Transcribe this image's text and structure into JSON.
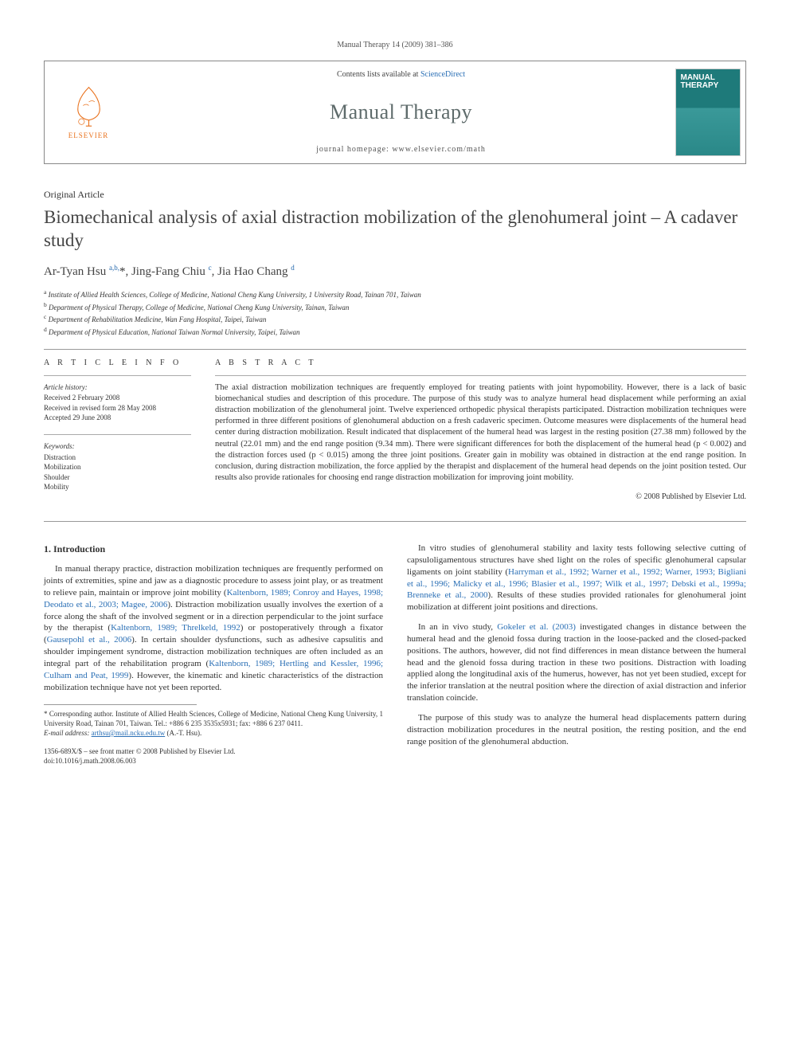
{
  "citation": "Manual Therapy 14 (2009) 381–386",
  "header": {
    "contents_prefix": "Contents lists available at ",
    "contents_link": "ScienceDirect",
    "journal": "Manual Therapy",
    "homepage_label": "journal homepage: ",
    "homepage_url": "www.elsevier.com/math",
    "publisher_label": "ELSEVIER",
    "cover_text": "MANUAL THERAPY"
  },
  "article_type": "Original Article",
  "title": "Biomechanical analysis of axial distraction mobilization of the glenohumeral joint – A cadaver study",
  "authors_html": "Ar-Tyan Hsu <sup>a,b,</sup><span class='star'>*</span>, Jing-Fang Chiu <sup>c</sup>, Jia Hao Chang <sup>d</sup>",
  "affiliations": [
    {
      "sup": "a",
      "text": "Institute of Allied Health Sciences, College of Medicine, National Cheng Kung University, 1 University Road, Tainan 701, Taiwan"
    },
    {
      "sup": "b",
      "text": "Department of Physical Therapy, College of Medicine, National Cheng Kung University, Tainan, Taiwan"
    },
    {
      "sup": "c",
      "text": "Department of Rehabilitation Medicine, Wan Fang Hospital, Taipei, Taiwan"
    },
    {
      "sup": "d",
      "text": "Department of Physical Education, National Taiwan Normal University, Taipei, Taiwan"
    }
  ],
  "info": {
    "heading": "A R T I C L E   I N F O",
    "history_label": "Article history:",
    "history": [
      "Received 2 February 2008",
      "Received in revised form 28 May 2008",
      "Accepted 29 June 2008"
    ],
    "keywords_label": "Keywords:",
    "keywords": [
      "Distraction",
      "Mobilization",
      "Shoulder",
      "Mobility"
    ]
  },
  "abstract": {
    "heading": "A B S T R A C T",
    "body": "The axial distraction mobilization techniques are frequently employed for treating patients with joint hypomobility. However, there is a lack of basic biomechanical studies and description of this procedure. The purpose of this study was to analyze humeral head displacement while performing an axial distraction mobilization of the glenohumeral joint. Twelve experienced orthopedic physical therapists participated. Distraction mobilization techniques were performed in three different positions of glenohumeral abduction on a fresh cadaveric specimen. Outcome measures were displacements of the humeral head center during distraction mobilization. Result indicated that displacement of the humeral head was largest in the resting position (27.38 mm) followed by the neutral (22.01 mm) and the end range position (9.34 mm). There were significant differences for both the displacement of the humeral head (p < 0.002) and the distraction forces used (p < 0.015) among the three joint positions. Greater gain in mobility was obtained in distraction at the end range position. In conclusion, during distraction mobilization, the force applied by the therapist and displacement of the humeral head depends on the joint position tested. Our results also provide rationales for choosing end range distraction mobilization for improving joint mobility.",
    "copyright": "© 2008 Published by Elsevier Ltd."
  },
  "section_heading": "1. Introduction",
  "left_col": [
    {
      "type": "p",
      "runs": [
        {
          "t": "In manual therapy practice, distraction mobilization techniques are frequently performed on joints of extremities, spine and jaw as a diagnostic procedure to assess joint play, or as treatment to relieve pain, maintain or improve joint mobility ("
        },
        {
          "t": "Kaltenborn, 1989; Conroy and Hayes, 1998; Deodato et al., 2003; Magee, 2006",
          "cite": true
        },
        {
          "t": "). Distraction mobilization usually involves the exertion of a force along the shaft of the involved segment or in a direction perpendicular to the joint surface by the therapist ("
        },
        {
          "t": "Kaltenborn, 1989; Threlkeld, 1992",
          "cite": true
        },
        {
          "t": ") or postoperatively through a fixator ("
        },
        {
          "t": "Gausepohl et al., 2006",
          "cite": true
        },
        {
          "t": "). In certain shoulder dysfunctions, such as adhesive capsulitis and shoulder impingement syndrome, distraction mobilization techniques are often included as an integral part of the rehabilitation program ("
        },
        {
          "t": "Kaltenborn, 1989; Hertling and Kessler, 1996; Culham and Peat, 1999",
          "cite": true
        },
        {
          "t": "). However, the kinematic and kinetic characteristics of the distraction mobilization technique have not yet been reported."
        }
      ]
    }
  ],
  "right_col": [
    {
      "type": "p",
      "runs": [
        {
          "t": "In vitro studies of glenohumeral stability and laxity tests following selective cutting of capsuloligamentous structures have shed light on the roles of specific glenohumeral capsular ligaments on joint stability ("
        },
        {
          "t": "Harryman et al., 1992; Warner et al., 1992; Warner, 1993; Bigliani et al., 1996; Malicky et al., 1996; Blasier et al., 1997; Wilk et al., 1997; Debski et al., 1999a; Brenneke et al., 2000",
          "cite": true
        },
        {
          "t": "). Results of these studies provided rationales for glenohumeral joint mobilization at different joint positions and directions."
        }
      ]
    },
    {
      "type": "p",
      "runs": [
        {
          "t": "In an in vivo study, "
        },
        {
          "t": "Gokeler et al. (2003)",
          "cite": true
        },
        {
          "t": " investigated changes in distance between the humeral head and the glenoid fossa during traction in the loose-packed and the closed-packed positions. The authors, however, did not find differences in mean distance between the humeral head and the glenoid fossa during traction in these two positions. Distraction with loading applied along the longitudinal axis of the humerus, however, has not yet been studied, except for the inferior translation at the neutral position where the direction of axial distraction and inferior translation coincide."
        }
      ]
    },
    {
      "type": "p",
      "runs": [
        {
          "t": "The purpose of this study was to analyze the humeral head displacements pattern during distraction mobilization procedures in the neutral position, the resting position, and the end range position of the glenohumeral abduction."
        }
      ]
    }
  ],
  "footnote": {
    "corr_label": "* Corresponding author. Institute of Allied Health Sciences, College of Medicine, National Cheng Kung University, 1 University Road, Tainan 701, Taiwan. Tel.: +886 6 235 3535x5931; fax: +886 6 237 0411.",
    "email_label": "E-mail address:",
    "email": "arthsu@mail.ncku.edu.tw",
    "email_suffix": " (A.-T. Hsu)."
  },
  "doi": {
    "line1": "1356-689X/$ – see front matter © 2008 Published by Elsevier Ltd.",
    "line2": "doi:10.1016/j.math.2008.06.003"
  },
  "colors": {
    "link": "#2a6fb5",
    "publisher": "#e9711c",
    "journal_name": "#5e6b6b",
    "cover_bg": "#1e7a7a"
  }
}
